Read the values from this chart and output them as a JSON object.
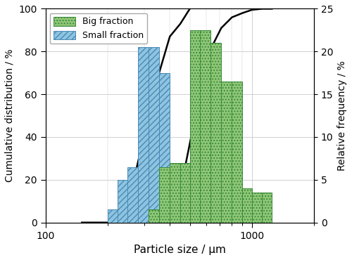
{
  "xlabel": "Particle size / μm",
  "ylabel_left": "Cumulative distribution / %",
  "ylabel_right": "Relative frequency / %",
  "xlim": [
    100,
    2000
  ],
  "ylim_left": [
    0,
    100
  ],
  "ylim_right": [
    0,
    25
  ],
  "small_fraction_bars": {
    "lefts": [
      200,
      224,
      250,
      280,
      315,
      355,
      400
    ],
    "rights": [
      224,
      250,
      280,
      315,
      355,
      400,
      450
    ],
    "heights": [
      1.5,
      5.0,
      6.5,
      20.5,
      20.5,
      17.5,
      6.0
    ],
    "color": "#8ec4e0",
    "edgecolor": "#4a8ab5",
    "hatch": "////"
  },
  "big_fraction_bars": {
    "lefts": [
      315,
      355,
      400,
      450,
      500,
      560,
      630,
      710,
      800,
      900,
      1000,
      1120
    ],
    "rights": [
      355,
      400,
      450,
      500,
      560,
      630,
      710,
      800,
      900,
      1000,
      1120,
      1250
    ],
    "heights": [
      1.5,
      6.5,
      7.0,
      7.0,
      22.5,
      22.5,
      21.0,
      16.5,
      16.5,
      4.0,
      3.5,
      3.5
    ],
    "color": "#90c878",
    "edgecolor": "#3a8a3a",
    "hatch": "...."
  },
  "small_fraction_cumulative": {
    "x": [
      150,
      200,
      224,
      250,
      280,
      315,
      355,
      400,
      450,
      500
    ],
    "y": [
      0,
      0,
      1.5,
      7.5,
      28,
      49,
      70,
      87,
      93,
      100
    ]
  },
  "big_fraction_cumulative": {
    "x": [
      300,
      315,
      355,
      400,
      450,
      500,
      560,
      630,
      710,
      800,
      900,
      1000,
      1120,
      1250
    ],
    "y": [
      0,
      0.5,
      2,
      8,
      15,
      37,
      60,
      81,
      91,
      96,
      98,
      99.5,
      100,
      100
    ]
  },
  "line_color": "#000000",
  "line_width": 1.8,
  "background_color": "#ffffff",
  "grid_color": "#d0d0d0",
  "yticks_left": [
    0,
    20,
    40,
    60,
    80,
    100
  ],
  "yticks_right": [
    0,
    5,
    10,
    15,
    20,
    25
  ],
  "xticks_major": [
    100,
    1000
  ],
  "legend_labels": [
    "Big fraction",
    "Small fraction"
  ]
}
